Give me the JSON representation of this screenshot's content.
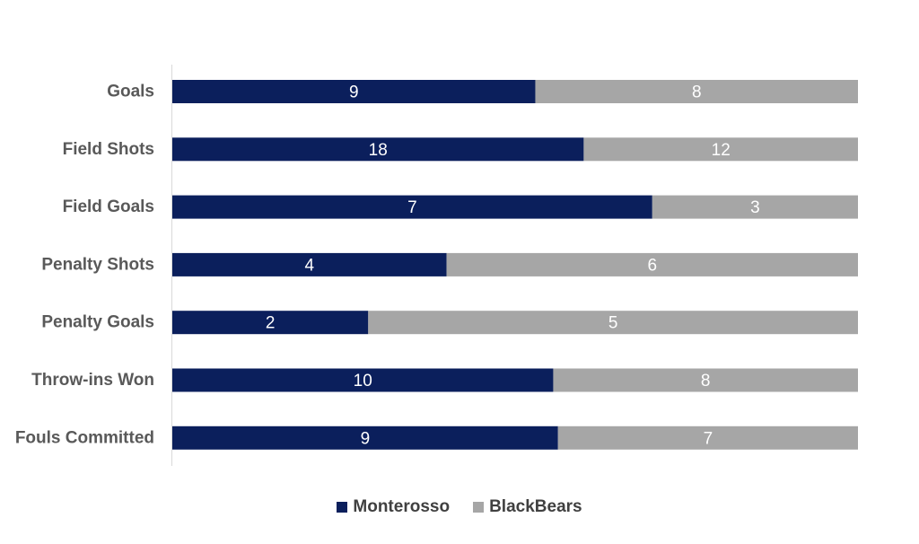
{
  "chart_data": {
    "type": "bar",
    "orientation": "horizontal",
    "stacking": "percent",
    "categories": [
      "Goals",
      "Field Shots",
      "Field Goals",
      "Penalty Shots",
      "Penalty Goals",
      "Throw-ins Won",
      "Fouls Committed"
    ],
    "series": [
      {
        "name": "Monterosso",
        "color": "#0b1f5c",
        "values": [
          9,
          18,
          7,
          4,
          2,
          10,
          9
        ]
      },
      {
        "name": "BlackBears",
        "color": "#a6a6a6",
        "values": [
          8,
          12,
          3,
          6,
          5,
          8,
          7
        ]
      }
    ],
    "xlim": [
      0,
      1
    ],
    "legend": "bottom",
    "grid": false
  }
}
